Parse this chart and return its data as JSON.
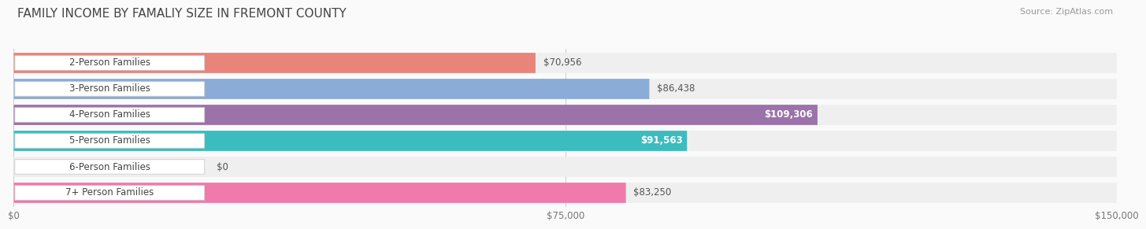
{
  "title": "FAMILY INCOME BY FAMALIY SIZE IN FREMONT COUNTY",
  "source": "Source: ZipAtlas.com",
  "categories": [
    "2-Person Families",
    "3-Person Families",
    "4-Person Families",
    "5-Person Families",
    "6-Person Families",
    "7+ Person Families"
  ],
  "values": [
    70956,
    86438,
    109306,
    91563,
    0,
    83250
  ],
  "bar_colors": [
    "#E8847A",
    "#8AACD6",
    "#9B72AA",
    "#3BBCBE",
    "#A8B4E8",
    "#F07AAA"
  ],
  "bar_bg_color": "#EFEFEF",
  "xlim": [
    0,
    150000
  ],
  "xtick_labels": [
    "$0",
    "$75,000",
    "$150,000"
  ],
  "value_labels": [
    "$70,956",
    "$86,438",
    "$109,306",
    "$91,563",
    "$0",
    "$83,250"
  ],
  "value_label_inside": [
    false,
    false,
    true,
    true,
    false,
    false
  ],
  "title_fontsize": 11,
  "source_fontsize": 8,
  "label_fontsize": 8.5,
  "value_fontsize": 8.5,
  "background_color": "#FAFAFA",
  "text_color": "#555555",
  "title_color": "#444444"
}
